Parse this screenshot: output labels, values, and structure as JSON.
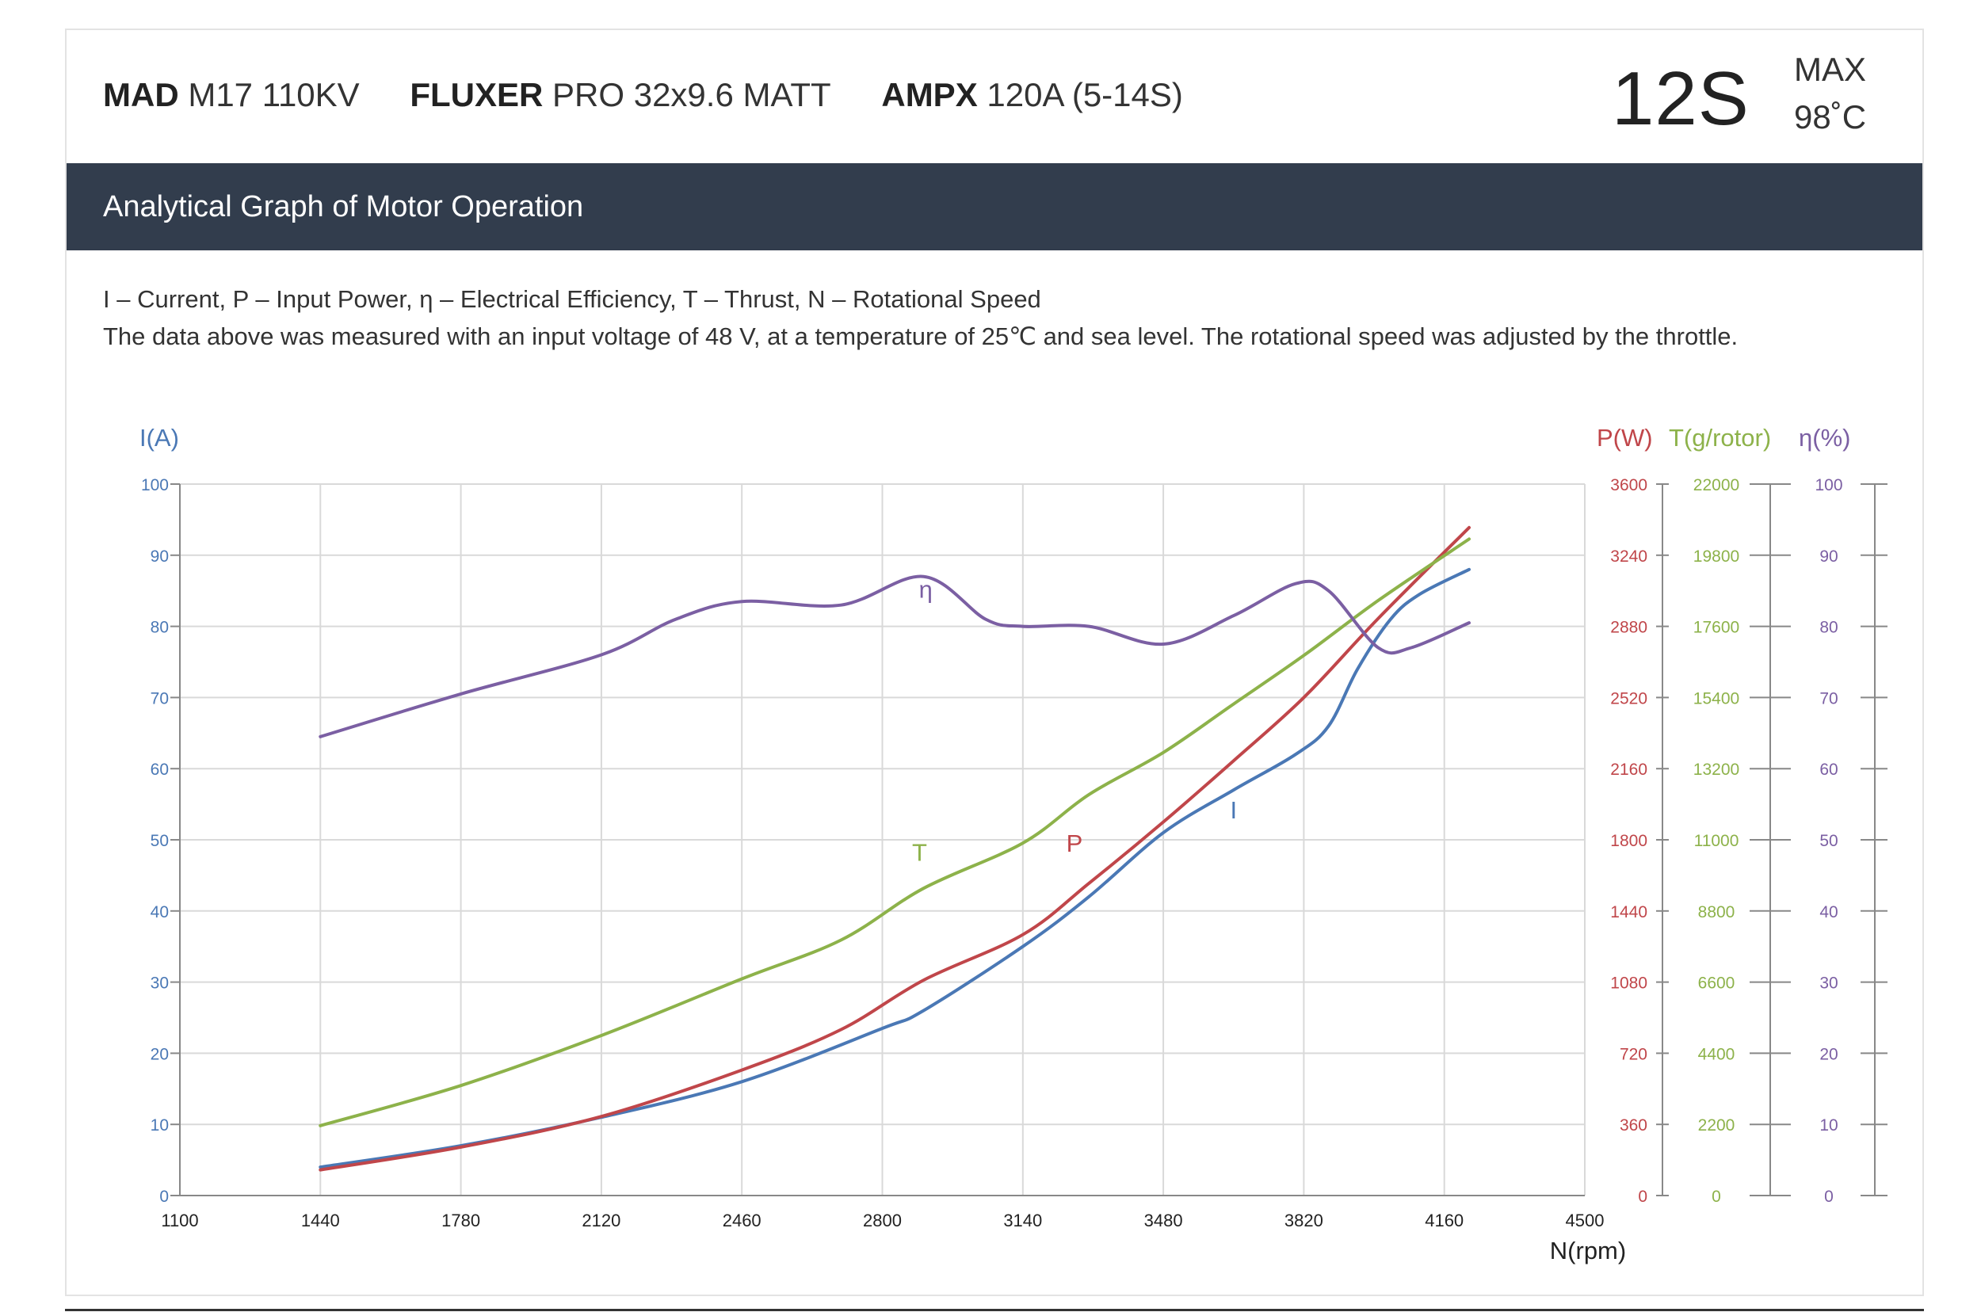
{
  "header": {
    "motor_brand": "MAD",
    "motor_model": "M17 110KV",
    "prop_brand": "FLUXER",
    "prop_model": "PRO 32x9.6 MATT",
    "esc_brand": "AMPX",
    "esc_model": "120A (5-14S)",
    "cells": "12S",
    "max_label": "MAX",
    "max_temp": "98˚C"
  },
  "banner": {
    "title": "Analytical Graph of Motor Operation"
  },
  "notes": {
    "legend": "I – Current, P – Input Power, η – Electrical Efficiency, T – Thrust,   N – Rotational Speed",
    "conditions": "The data above was measured with an input voltage of   48 V, at a temperature of 25℃ and sea level. The rotational speed was adjusted by the throttle."
  },
  "colors": {
    "current": "#4a78b5",
    "power": "#c0464a",
    "thrust": "#8db24a",
    "efficiency": "#7b5fa3",
    "grid": "#d9d9d9",
    "banner": "#323d4d"
  },
  "chart_data": {
    "type": "line",
    "xlabel": "N(rpm)",
    "xlim": [
      1100,
      4500
    ],
    "x_ticks": [
      1100,
      1440,
      1780,
      2120,
      2460,
      2800,
      3140,
      3480,
      3820,
      4160,
      4500
    ],
    "grid": true,
    "axes": [
      {
        "id": "I",
        "label": "I(A)",
        "side": "left",
        "range": [
          0,
          100
        ],
        "ticks": [
          0,
          10,
          20,
          30,
          40,
          50,
          60,
          70,
          80,
          90,
          100
        ],
        "color": "#4a78b5"
      },
      {
        "id": "P",
        "label": "P(W)",
        "side": "right",
        "range": [
          0,
          3600
        ],
        "ticks": [
          0,
          360,
          720,
          1080,
          1440,
          1800,
          2160,
          2520,
          2880,
          3240,
          3600
        ],
        "color": "#c0464a"
      },
      {
        "id": "T",
        "label": "T(g/rotor)",
        "side": "right",
        "range": [
          0,
          22000
        ],
        "ticks": [
          0,
          2200,
          4400,
          6600,
          8800,
          11000,
          13200,
          15400,
          17600,
          19800,
          22000
        ],
        "color": "#8db24a"
      },
      {
        "id": "E",
        "label": "η(%)",
        "side": "right",
        "range": [
          0,
          100
        ],
        "ticks": [
          0,
          10,
          20,
          30,
          40,
          50,
          60,
          70,
          80,
          90,
          100
        ],
        "color": "#7b5fa3"
      }
    ],
    "series": [
      {
        "name": "I",
        "axis": "I",
        "color": "#4a78b5",
        "label_at": [
          3650,
          53
        ],
        "points": [
          [
            1440,
            4
          ],
          [
            1780,
            7
          ],
          [
            2120,
            11
          ],
          [
            2460,
            16
          ],
          [
            2800,
            23.5
          ],
          [
            2900,
            26
          ],
          [
            3140,
            35
          ],
          [
            3300,
            42
          ],
          [
            3480,
            51
          ],
          [
            3650,
            57
          ],
          [
            3800,
            62
          ],
          [
            3880,
            66
          ],
          [
            3950,
            74
          ],
          [
            4030,
            81
          ],
          [
            4100,
            84.5
          ],
          [
            4220,
            88
          ]
        ]
      },
      {
        "name": "P",
        "axis": "P",
        "color": "#c0464a",
        "label_at": [
          3265,
          1740
        ],
        "points": [
          [
            1440,
            130
          ],
          [
            1780,
            245
          ],
          [
            2120,
            400
          ],
          [
            2460,
            635
          ],
          [
            2700,
            840
          ],
          [
            2900,
            1090
          ],
          [
            3140,
            1320
          ],
          [
            3300,
            1580
          ],
          [
            3480,
            1890
          ],
          [
            3650,
            2200
          ],
          [
            3820,
            2520
          ],
          [
            4000,
            2920
          ],
          [
            4220,
            3380
          ]
        ]
      },
      {
        "name": "T",
        "axis": "T",
        "color": "#8db24a",
        "label_at": [
          2890,
          10350
        ],
        "points": [
          [
            1440,
            2160
          ],
          [
            1780,
            3400
          ],
          [
            2120,
            4950
          ],
          [
            2460,
            6700
          ],
          [
            2700,
            7900
          ],
          [
            2900,
            9500
          ],
          [
            3140,
            10900
          ],
          [
            3300,
            12400
          ],
          [
            3480,
            13700
          ],
          [
            3650,
            15200
          ],
          [
            3820,
            16700
          ],
          [
            4000,
            18400
          ],
          [
            4220,
            20300
          ]
        ]
      },
      {
        "name": "η",
        "axis": "E",
        "color": "#7b5fa3",
        "label_at": [
          2905,
          84
        ],
        "points": [
          [
            1440,
            64.5
          ],
          [
            1780,
            70.5
          ],
          [
            2120,
            76
          ],
          [
            2300,
            81
          ],
          [
            2460,
            83.5
          ],
          [
            2700,
            83
          ],
          [
            2900,
            87
          ],
          [
            3050,
            81
          ],
          [
            3140,
            80
          ],
          [
            3300,
            80
          ],
          [
            3480,
            77.5
          ],
          [
            3650,
            81.5
          ],
          [
            3800,
            86
          ],
          [
            3880,
            85
          ],
          [
            4000,
            77
          ],
          [
            4080,
            77
          ],
          [
            4220,
            80.5
          ]
        ]
      }
    ]
  }
}
